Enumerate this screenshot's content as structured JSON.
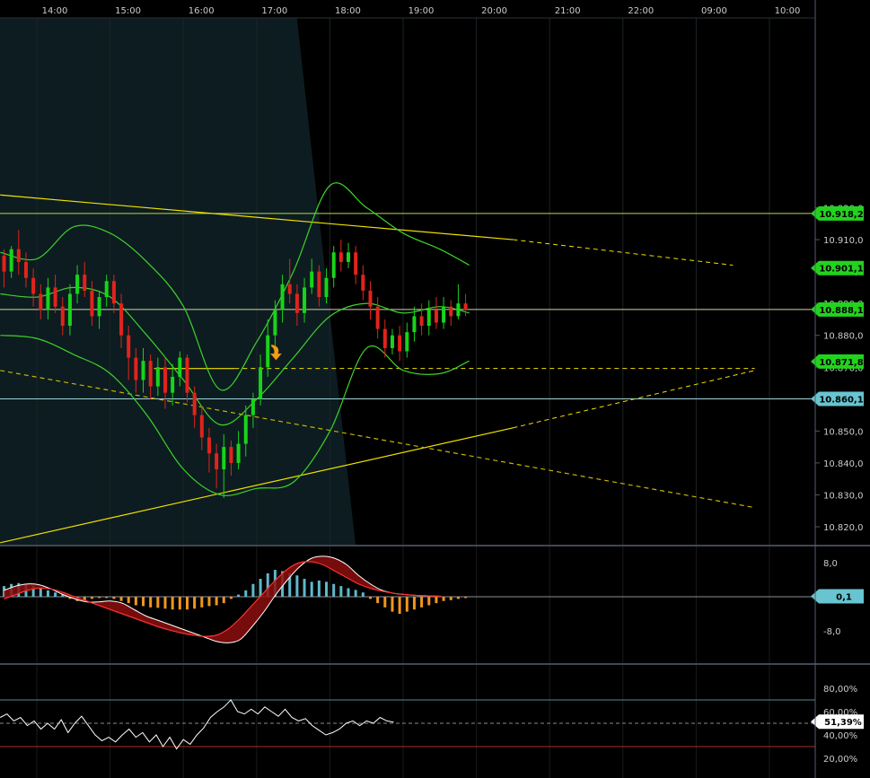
{
  "chart_data": [
    {
      "type": "candlestick",
      "title": "",
      "time_axis": [
        "14:00",
        "15:00",
        "16:00",
        "17:00",
        "18:00",
        "19:00",
        "20:00",
        "21:00",
        "22:00",
        "09:00",
        "10:00"
      ],
      "y_ticks": [
        "10.920,0",
        "10.910,0",
        "10.900,0",
        "10.890,0",
        "10.880,0",
        "10.870,0",
        "10.860,0",
        "10.850,0",
        "10.840,0",
        "10.830,0",
        "10.820,0"
      ],
      "ylim": [
        10813,
        10929
      ],
      "price_badges": [
        {
          "label": "10.918,2",
          "value": 10918.2,
          "color": "#22d31e"
        },
        {
          "label": "10.901,1",
          "value": 10901.1,
          "color": "#22d31e"
        },
        {
          "label": "10.888,1",
          "value": 10888.1,
          "color": "#22d31e"
        },
        {
          "label": "10.871,8",
          "value": 10871.8,
          "color": "#22d31e"
        },
        {
          "label": "10.860,1",
          "value": 10860.1,
          "color": "#67c4d0"
        }
      ],
      "horizontal_lines": [
        {
          "value": 10918.2,
          "color": "#b6d84a"
        },
        {
          "value": 10888.1,
          "color": "#cfd6a8"
        },
        {
          "value": 10860.1,
          "color": "#9fd6dc"
        }
      ],
      "trendlines": [
        {
          "from": [
            0,
            10924
          ],
          "to": [
            7.0,
            10910
          ],
          "color": "#f0e000",
          "extend_dashed_to": [
            10.0,
            10902
          ]
        },
        {
          "from": [
            0,
            10815
          ],
          "to": [
            7.0,
            10851
          ],
          "color": "#f0e000",
          "extend_dashed_to": [
            10.3,
            10869
          ]
        },
        {
          "from": [
            0,
            10869
          ],
          "to": [
            10.3,
            10826
          ],
          "color": "#c8b400",
          "dashed": true
        },
        {
          "from": [
            2.1,
            10869.6
          ],
          "to": [
            3.2,
            10869.6
          ],
          "color": "#f0e000",
          "extend_dashed_to": [
            10.3,
            10869.6
          ]
        }
      ],
      "candles": [
        [
          -0.45,
          10905,
          10900,
          10907,
          10895
        ],
        [
          -0.35,
          10900,
          10907,
          10908,
          10898
        ],
        [
          -0.25,
          10907,
          10903,
          10913,
          10899
        ],
        [
          -0.15,
          10903,
          10898,
          10906,
          10895
        ],
        [
          -0.05,
          10898,
          10893,
          10901,
          10889
        ],
        [
          0.05,
          10893,
          10888,
          10896,
          10885
        ],
        [
          0.15,
          10888,
          10895,
          10898,
          10885
        ],
        [
          0.25,
          10895,
          10889,
          10899,
          10887
        ],
        [
          0.35,
          10889,
          10883,
          10892,
          10880
        ],
        [
          0.45,
          10883,
          10893,
          10896,
          10880
        ],
        [
          0.55,
          10893,
          10899,
          10902,
          10890
        ],
        [
          0.65,
          10899,
          10894,
          10903,
          10892
        ],
        [
          0.75,
          10894,
          10886,
          10897,
          10883
        ],
        [
          0.85,
          10886,
          10892,
          10894,
          10882
        ],
        [
          0.95,
          10892,
          10897,
          10899,
          10889
        ],
        [
          1.05,
          10897,
          10890,
          10899,
          10887
        ],
        [
          1.15,
          10890,
          10880,
          10893,
          10876
        ],
        [
          1.25,
          10880,
          10873,
          10883,
          10866
        ],
        [
          1.35,
          10873,
          10866,
          10876,
          10862
        ],
        [
          1.45,
          10866,
          10872,
          10876,
          10862
        ],
        [
          1.55,
          10872,
          10864,
          10874,
          10860
        ],
        [
          1.65,
          10864,
          10870,
          10873,
          10861
        ],
        [
          1.75,
          10870,
          10862,
          10873,
          10857
        ],
        [
          1.85,
          10862,
          10867,
          10871,
          10858
        ],
        [
          1.95,
          10867,
          10873,
          10875,
          10864
        ],
        [
          2.05,
          10873,
          10862,
          10874,
          10859
        ],
        [
          2.15,
          10862,
          10855,
          10864,
          10851
        ],
        [
          2.25,
          10855,
          10848,
          10858,
          10844
        ],
        [
          2.35,
          10848,
          10843,
          10851,
          10837
        ],
        [
          2.45,
          10843,
          10838,
          10846,
          10832
        ],
        [
          2.55,
          10838,
          10845,
          10849,
          10829
        ],
        [
          2.65,
          10845,
          10840,
          10847,
          10836
        ],
        [
          2.75,
          10840,
          10846,
          10850,
          10838
        ],
        [
          2.85,
          10846,
          10855,
          10858,
          10842
        ],
        [
          2.95,
          10855,
          10860,
          10862,
          10851
        ],
        [
          3.05,
          10860,
          10870,
          10874,
          10858
        ],
        [
          3.15,
          10870,
          10880,
          10885,
          10867
        ],
        [
          3.25,
          10880,
          10888,
          10891,
          10876
        ],
        [
          3.35,
          10888,
          10896,
          10899,
          10884
        ],
        [
          3.45,
          10896,
          10893,
          10904,
          10890
        ],
        [
          3.55,
          10893,
          10887,
          10896,
          10883
        ],
        [
          3.65,
          10887,
          10895,
          10898,
          10884
        ],
        [
          3.75,
          10895,
          10900,
          10904,
          10893
        ],
        [
          3.85,
          10900,
          10892,
          10902,
          10889
        ],
        [
          3.95,
          10892,
          10898,
          10901,
          10890
        ],
        [
          4.05,
          10898,
          10906,
          10908,
          10895
        ],
        [
          4.15,
          10906,
          10903,
          10910,
          10900
        ],
        [
          4.25,
          10903,
          10906,
          10909,
          10901
        ],
        [
          4.35,
          10906,
          10899,
          10908,
          10896
        ],
        [
          4.45,
          10899,
          10894,
          10902,
          10891
        ],
        [
          4.55,
          10894,
          10889,
          10897,
          10885
        ],
        [
          4.65,
          10889,
          10882,
          10892,
          10879
        ],
        [
          4.75,
          10882,
          10876,
          10885,
          10873
        ],
        [
          4.85,
          10876,
          10880,
          10882,
          10874
        ],
        [
          4.95,
          10880,
          10875,
          10883,
          10872
        ],
        [
          5.05,
          10875,
          10881,
          10884,
          10873
        ],
        [
          5.15,
          10881,
          10886,
          10889,
          10878
        ],
        [
          5.25,
          10886,
          10883,
          10890,
          10880
        ],
        [
          5.35,
          10883,
          10888,
          10891,
          10880
        ],
        [
          5.45,
          10888,
          10884,
          10892,
          10882
        ],
        [
          5.55,
          10884,
          10889,
          10892,
          10882
        ],
        [
          5.65,
          10889,
          10886,
          10891,
          10883
        ],
        [
          5.75,
          10886,
          10890,
          10896,
          10885
        ],
        [
          5.85,
          10890,
          10888,
          10893,
          10886
        ]
      ],
      "bollinger": {
        "x": [
          -0.5,
          0,
          0.5,
          1,
          1.5,
          2,
          2.5,
          3,
          3.5,
          4,
          4.5,
          5,
          5.5,
          5.9
        ],
        "upper": [
          10906,
          10904,
          10914,
          10912,
          10903,
          10889,
          10863,
          10878,
          10900,
          10927,
          10920,
          10912,
          10907,
          10902
        ],
        "middle": [
          10893,
          10892,
          10895,
          10892,
          10880,
          10866,
          10852,
          10860,
          10873,
          10886,
          10890,
          10887,
          10889,
          10887
        ],
        "lower": [
          10880,
          10879,
          10874,
          10868,
          10855,
          10838,
          10830,
          10832,
          10834,
          10850,
          10876,
          10869,
          10868,
          10872
        ]
      },
      "shaded_session": {
        "from": 3.5,
        "to": 4.35
      },
      "signal_marker": {
        "x": 3.25,
        "y": 10872
      }
    },
    {
      "type": "histogram",
      "indicator": "MACD",
      "y_ticks": [
        "8,0",
        "-8,0"
      ],
      "ylim": [
        -12,
        11
      ],
      "badge": {
        "label": "0,1",
        "value": 0.1,
        "color": "#67c4d0"
      },
      "x": [
        -0.45,
        -0.35,
        -0.25,
        -0.15,
        -0.05,
        0.05,
        0.15,
        0.25,
        0.35,
        0.45,
        0.55,
        0.65,
        0.75,
        0.85,
        0.95,
        1.05,
        1.15,
        1.25,
        1.35,
        1.45,
        1.55,
        1.65,
        1.75,
        1.85,
        1.95,
        2.05,
        2.15,
        2.25,
        2.35,
        2.45,
        2.55,
        2.65,
        2.75,
        2.85,
        2.95,
        3.05,
        3.15,
        3.25,
        3.35,
        3.45,
        3.55,
        3.65,
        3.75,
        3.85,
        3.95,
        4.05,
        4.15,
        4.25,
        4.35,
        4.45,
        4.55,
        4.65,
        4.75,
        4.85,
        4.95,
        5.05,
        5.15,
        5.25,
        5.35,
        5.45,
        5.55,
        5.65,
        5.75,
        5.85
      ],
      "histogram": [
        2.5,
        3,
        3.2,
        3,
        2.5,
        2,
        1.5,
        1,
        0.5,
        -0.5,
        -1,
        -0.8,
        -0.5,
        -0.3,
        -0.3,
        -0.5,
        -1,
        -1.5,
        -2,
        -2.2,
        -2.5,
        -2.6,
        -2.8,
        -3,
        -3,
        -3,
        -2.8,
        -2.5,
        -2.2,
        -2,
        -1.5,
        -0.5,
        0.5,
        1.5,
        3,
        4.2,
        5.5,
        6.3,
        6,
        5.5,
        5,
        4.2,
        3.5,
        3.8,
        3.5,
        3,
        2.5,
        2,
        1.6,
        1,
        -0.5,
        -1.5,
        -2.5,
        -3.5,
        -4,
        -3.5,
        -3,
        -2.5,
        -2,
        -1.5,
        -1,
        -0.8,
        -0.5,
        -0.3
      ],
      "macd": [
        1.5,
        2.5,
        3,
        2.8,
        1.8,
        0.5,
        -0.5,
        -1.2,
        -1.2,
        -1,
        -1.5,
        -3,
        -4.5,
        -5.5,
        -6.5,
        -7.5,
        -8.5,
        -9.5,
        -10.5,
        -10.8,
        -10,
        -7,
        -3.5,
        0.5,
        4,
        7,
        9,
        9.5,
        9,
        7.5,
        5,
        3,
        1.5,
        0.8,
        0.5,
        0.3,
        0.2,
        0.1
      ],
      "signal": [
        -0.5,
        0.5,
        1.5,
        2,
        1.8,
        1,
        0,
        -1,
        -2,
        -3,
        -4,
        -5,
        -6,
        -7,
        -7.8,
        -8.5,
        -9,
        -9.3,
        -9,
        -7.5,
        -5,
        -2,
        1,
        4,
        6.5,
        8,
        8.2,
        7.5,
        6,
        4.5,
        3,
        2,
        1.3,
        0.8,
        0.5,
        0.3,
        0.2,
        0.1
      ]
    },
    {
      "type": "line",
      "indicator": "oscillator",
      "y_ticks": [
        "80,00%",
        "60,00%",
        "40,00%",
        "20,00%"
      ],
      "ylim": [
        10,
        92
      ],
      "levels": [
        {
          "value": 70,
          "color": "#4a8f8a"
        },
        {
          "value": 30,
          "color": "#b02a2a"
        },
        {
          "value": 50,
          "color": "#8a8a8a"
        }
      ],
      "badge": {
        "label": "51,39%",
        "value": 51.39,
        "color": "#ffffff"
      },
      "values": [
        55,
        58,
        52,
        55,
        48,
        52,
        45,
        50,
        45,
        53,
        42,
        50,
        56,
        48,
        40,
        35,
        38,
        34,
        40,
        45,
        38,
        42,
        34,
        40,
        30,
        38,
        28,
        36,
        32,
        40,
        46,
        55,
        60,
        64,
        70,
        60,
        58,
        62,
        58,
        64,
        60,
        56,
        62,
        55,
        52,
        54,
        48,
        44,
        40,
        42,
        45,
        50,
        52,
        48,
        52,
        50,
        55,
        52,
        51
      ]
    }
  ]
}
